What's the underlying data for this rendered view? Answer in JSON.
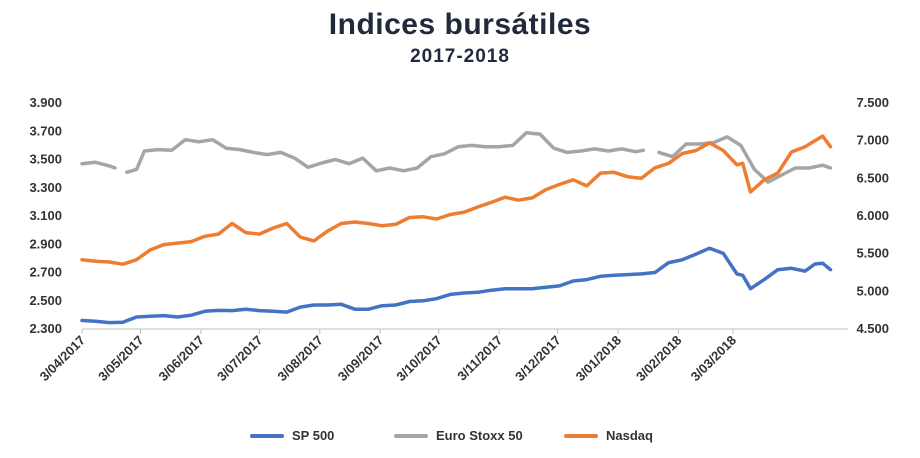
{
  "chart_data": {
    "type": "line",
    "title": "Indices bursátiles",
    "subtitle": "2017-2018",
    "xlabel": "",
    "ylabel_left": "",
    "ylabel_right": "",
    "grid": false,
    "legend_position": "bottom",
    "y_left": {
      "range": [
        2300,
        3900
      ],
      "ticks": [
        2300,
        2500,
        2700,
        2900,
        3100,
        3300,
        3500,
        3700,
        3900
      ],
      "tick_labels": [
        "2.300",
        "2.500",
        "2.700",
        "2.900",
        "3.100",
        "3.300",
        "3.500",
        "3.700",
        "3.900"
      ]
    },
    "y_right": {
      "range": [
        4500,
        7500
      ],
      "ticks": [
        4500,
        5000,
        5500,
        6000,
        6500,
        7000,
        7500
      ],
      "tick_labels": [
        "4.500",
        "5.000",
        "5.500",
        "6.000",
        "6.500",
        "7.000",
        "7.500"
      ]
    },
    "x_range": [
      "2017-04-03",
      "2018-05-01"
    ],
    "x_ticks": [
      "2017-04-03",
      "2017-05-03",
      "2017-06-03",
      "2017-07-03",
      "2017-08-03",
      "2017-09-03",
      "2017-10-03",
      "2017-11-03",
      "2017-12-03",
      "2018-01-03",
      "2018-02-03",
      "2018-03-03"
    ],
    "x_tick_labels": [
      "3/04/2017",
      "3/05/2017",
      "3/06/2017",
      "3/07/2017",
      "3/08/2017",
      "3/09/2017",
      "3/10/2017",
      "3/11/2017",
      "3/12/2017",
      "3/01/2018",
      "3/02/2018",
      "3/03/2018"
    ],
    "series": [
      {
        "name": "SP 500",
        "axis": "left",
        "color": "#4472C4",
        "points": [
          [
            "2017-04-03",
            2360
          ],
          [
            "2017-04-10",
            2355
          ],
          [
            "2017-04-17",
            2345
          ],
          [
            "2017-04-24",
            2348
          ],
          [
            "2017-05-01",
            2385
          ],
          [
            "2017-05-08",
            2390
          ],
          [
            "2017-05-15",
            2395
          ],
          [
            "2017-05-22",
            2385
          ],
          [
            "2017-05-29",
            2398
          ],
          [
            "2017-06-05",
            2425
          ],
          [
            "2017-06-12",
            2432
          ],
          [
            "2017-06-19",
            2430
          ],
          [
            "2017-06-26",
            2440
          ],
          [
            "2017-07-03",
            2430
          ],
          [
            "2017-07-10",
            2425
          ],
          [
            "2017-07-17",
            2420
          ],
          [
            "2017-07-24",
            2455
          ],
          [
            "2017-07-31",
            2470
          ],
          [
            "2017-08-07",
            2470
          ],
          [
            "2017-08-14",
            2475
          ],
          [
            "2017-08-21",
            2440
          ],
          [
            "2017-08-28",
            2440
          ],
          [
            "2017-09-04",
            2465
          ],
          [
            "2017-09-11",
            2470
          ],
          [
            "2017-09-18",
            2495
          ],
          [
            "2017-09-25",
            2500
          ],
          [
            "2017-10-02",
            2515
          ],
          [
            "2017-10-09",
            2545
          ],
          [
            "2017-10-16",
            2555
          ],
          [
            "2017-10-23",
            2560
          ],
          [
            "2017-10-30",
            2575
          ],
          [
            "2017-11-06",
            2585
          ],
          [
            "2017-11-13",
            2585
          ],
          [
            "2017-11-20",
            2585
          ],
          [
            "2017-11-27",
            2595
          ],
          [
            "2017-12-04",
            2605
          ],
          [
            "2017-12-11",
            2640
          ],
          [
            "2017-12-18",
            2650
          ],
          [
            "2017-12-25",
            2673
          ],
          [
            "2018-01-01",
            2680
          ],
          [
            "2018-01-08",
            2685
          ],
          [
            "2018-01-15",
            2690
          ],
          [
            "2018-01-22",
            2700
          ],
          [
            "2018-01-29",
            2770
          ],
          [
            "2018-02-05",
            2790
          ],
          [
            "2018-02-12",
            2830
          ],
          [
            "2018-02-19",
            2872
          ],
          [
            "2018-02-26",
            2835
          ],
          [
            "2018-03-05",
            2690
          ],
          [
            "2018-03-08",
            2680
          ],
          [
            "2018-03-12",
            2585
          ],
          [
            "2018-03-19",
            2650
          ],
          [
            "2018-03-26",
            2720
          ],
          [
            "2018-04-02",
            2730
          ],
          [
            "2018-04-09",
            2710
          ],
          [
            "2018-04-14",
            2760
          ],
          [
            "2018-04-18",
            2765
          ],
          [
            "2018-04-22",
            2720
          ]
        ]
      },
      {
        "name": "Euro Stoxx 50",
        "axis": "left",
        "color": "#A5A5A5",
        "points": [
          [
            "2017-04-03",
            3470
          ],
          [
            "2017-04-10",
            3480
          ],
          [
            "2017-04-17",
            3455
          ],
          [
            "2017-04-20",
            3440
          ],
          null,
          [
            "2017-04-26",
            3410
          ],
          [
            "2017-05-01",
            3430
          ],
          [
            "2017-05-05",
            3560
          ],
          [
            "2017-05-12",
            3570
          ],
          [
            "2017-05-19",
            3565
          ],
          [
            "2017-05-26",
            3640
          ],
          [
            "2017-06-02",
            3625
          ],
          [
            "2017-06-09",
            3640
          ],
          [
            "2017-06-16",
            3580
          ],
          [
            "2017-06-23",
            3570
          ],
          [
            "2017-06-30",
            3550
          ],
          [
            "2017-07-07",
            3535
          ],
          [
            "2017-07-14",
            3550
          ],
          [
            "2017-07-21",
            3510
          ],
          [
            "2017-07-28",
            3445
          ],
          [
            "2017-08-04",
            3475
          ],
          [
            "2017-08-11",
            3500
          ],
          [
            "2017-08-18",
            3470
          ],
          [
            "2017-08-25",
            3510
          ],
          [
            "2017-09-01",
            3420
          ],
          [
            "2017-09-08",
            3440
          ],
          [
            "2017-09-15",
            3420
          ],
          [
            "2017-09-22",
            3440
          ],
          [
            "2017-09-29",
            3520
          ],
          [
            "2017-10-06",
            3540
          ],
          [
            "2017-10-13",
            3590
          ],
          [
            "2017-10-20",
            3600
          ],
          [
            "2017-10-27",
            3590
          ],
          [
            "2017-11-03",
            3590
          ],
          [
            "2017-11-10",
            3600
          ],
          [
            "2017-11-17",
            3690
          ],
          [
            "2017-11-24",
            3680
          ],
          [
            "2017-12-01",
            3580
          ],
          [
            "2017-12-08",
            3550
          ],
          [
            "2017-12-15",
            3560
          ],
          [
            "2017-12-22",
            3575
          ],
          [
            "2017-12-29",
            3560
          ],
          [
            "2018-01-05",
            3575
          ],
          [
            "2018-01-12",
            3555
          ],
          [
            "2018-01-16",
            3565
          ],
          null,
          [
            "2018-01-24",
            3550
          ],
          [
            "2018-01-31",
            3520
          ],
          [
            "2018-02-07",
            3610
          ],
          [
            "2018-02-14",
            3610
          ],
          [
            "2018-02-21",
            3620
          ],
          [
            "2018-02-28",
            3660
          ],
          [
            "2018-03-07",
            3600
          ],
          [
            "2018-03-14",
            3430
          ],
          [
            "2018-03-21",
            3340
          ],
          [
            "2018-03-28",
            3390
          ],
          [
            "2018-04-04",
            3440
          ],
          [
            "2018-04-11",
            3440
          ],
          [
            "2018-04-18",
            3460
          ],
          [
            "2018-04-22",
            3440
          ]
        ]
      },
      {
        "name": "Nasdaq",
        "axis": "right",
        "color": "#ED7D31",
        "points": [
          [
            "2017-04-03",
            5420
          ],
          [
            "2017-04-10",
            5400
          ],
          [
            "2017-04-17",
            5390
          ],
          [
            "2017-04-24",
            5360
          ],
          [
            "2017-05-01",
            5420
          ],
          [
            "2017-05-08",
            5550
          ],
          [
            "2017-05-15",
            5620
          ],
          [
            "2017-05-22",
            5640
          ],
          [
            "2017-05-29",
            5660
          ],
          [
            "2017-06-05",
            5730
          ],
          [
            "2017-06-12",
            5760
          ],
          [
            "2017-06-19",
            5900
          ],
          [
            "2017-06-26",
            5780
          ],
          [
            "2017-07-03",
            5760
          ],
          [
            "2017-07-10",
            5840
          ],
          [
            "2017-07-17",
            5900
          ],
          [
            "2017-07-24",
            5720
          ],
          [
            "2017-07-31",
            5670
          ],
          [
            "2017-08-07",
            5800
          ],
          [
            "2017-08-14",
            5900
          ],
          [
            "2017-08-21",
            5920
          ],
          [
            "2017-08-28",
            5900
          ],
          [
            "2017-09-04",
            5870
          ],
          [
            "2017-09-11",
            5890
          ],
          [
            "2017-09-18",
            5980
          ],
          [
            "2017-09-25",
            5990
          ],
          [
            "2017-10-02",
            5960
          ],
          [
            "2017-10-09",
            6020
          ],
          [
            "2017-10-16",
            6050
          ],
          [
            "2017-10-23",
            6120
          ],
          [
            "2017-10-30",
            6180
          ],
          [
            "2017-11-06",
            6250
          ],
          [
            "2017-11-13",
            6210
          ],
          [
            "2017-11-20",
            6240
          ],
          [
            "2017-11-27",
            6350
          ],
          [
            "2017-12-04",
            6420
          ],
          [
            "2017-12-11",
            6480
          ],
          [
            "2017-12-18",
            6400
          ],
          [
            "2017-12-25",
            6570
          ],
          [
            "2018-01-01",
            6580
          ],
          [
            "2018-01-08",
            6520
          ],
          [
            "2018-01-15",
            6500
          ],
          [
            "2018-01-22",
            6640
          ],
          [
            "2018-01-29",
            6700
          ],
          [
            "2018-02-05",
            6830
          ],
          [
            "2018-02-12",
            6870
          ],
          [
            "2018-02-19",
            6970
          ],
          [
            "2018-02-26",
            6870
          ],
          [
            "2018-03-05",
            6680
          ],
          [
            "2018-03-08",
            6700
          ],
          [
            "2018-03-12",
            6320
          ],
          [
            "2018-03-19",
            6480
          ],
          [
            "2018-03-26",
            6570
          ],
          [
            "2018-04-02",
            6850
          ],
          [
            "2018-04-09",
            6920
          ],
          [
            "2018-04-14",
            7000
          ],
          [
            "2018-04-18",
            7060
          ],
          [
            "2018-04-22",
            6920
          ]
        ]
      }
    ]
  }
}
